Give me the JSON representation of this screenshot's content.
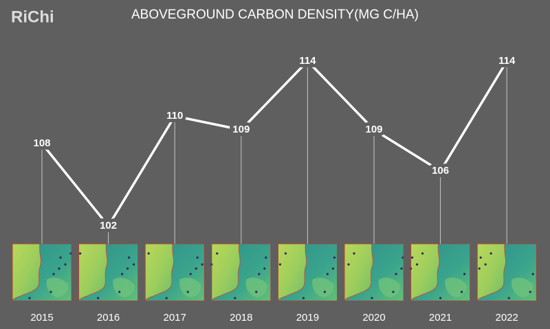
{
  "chart_data": {
    "type": "line",
    "brand": "RiChi",
    "title": "ABOVEGROUND CARBON DENSITY(MG  C/HA)",
    "categories": [
      "2015",
      "2016",
      "2017",
      "2018",
      "2019",
      "2020",
      "2021",
      "2022"
    ],
    "values": [
      108,
      102,
      110,
      109,
      114,
      109,
      106,
      114
    ],
    "color": "#ffffff"
  }
}
